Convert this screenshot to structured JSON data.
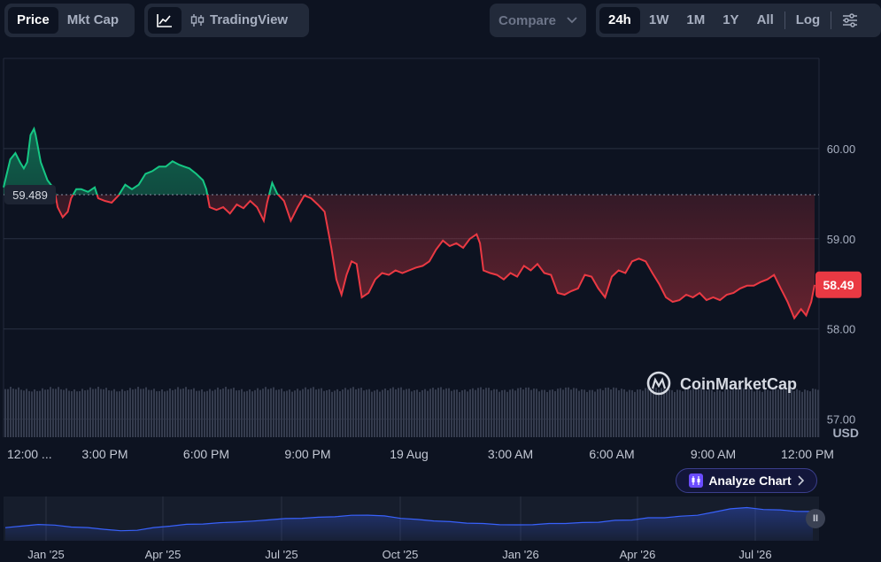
{
  "toolbar": {
    "type_tabs": [
      {
        "label": "Price",
        "active": true
      },
      {
        "label": "Mkt Cap",
        "active": false
      }
    ],
    "tradingview_label": "TradingView",
    "compare_label": "Compare",
    "ranges": [
      {
        "label": "24h",
        "active": true
      },
      {
        "label": "1W",
        "active": false
      },
      {
        "label": "1M",
        "active": false
      },
      {
        "label": "1Y",
        "active": false
      },
      {
        "label": "All",
        "active": false
      }
    ],
    "log_label": "Log"
  },
  "watermark": "CoinMarketCap",
  "analyze_label": "Analyze Chart",
  "colors": {
    "up": "#16c784",
    "down": "#ea3943",
    "volume": "#353c4e",
    "navigator": "#3861fb"
  },
  "chart_data": [
    {
      "type": "line",
      "currency": "USD",
      "baseline_value": 59.489,
      "baseline_label": "59.489",
      "current_value": 58.49,
      "current_label": "58.49",
      "ylim": [
        56.8,
        61.0
      ],
      "y_ticks": [
        {
          "value": 60,
          "label": "60.00"
        },
        {
          "value": 59,
          "label": "59.00"
        },
        {
          "value": 58,
          "label": "58.00"
        },
        {
          "value": 57,
          "label": "57.00"
        }
      ],
      "x_range_hours": [
        0,
        24
      ],
      "x_ticks": [
        {
          "hour": 0.8,
          "label": "12:00 ..."
        },
        {
          "hour": 3,
          "label": "3:00 PM"
        },
        {
          "hour": 6,
          "label": "6:00 PM"
        },
        {
          "hour": 9,
          "label": "9:00 PM"
        },
        {
          "hour": 12,
          "label": "19 Aug"
        },
        {
          "hour": 15,
          "label": "3:00 AM"
        },
        {
          "hour": 18,
          "label": "6:00 AM"
        },
        {
          "hour": 21,
          "label": "9:00 AM"
        },
        {
          "hour": 24,
          "label": "12:00 PM"
        }
      ],
      "points": [
        [
          0.0,
          59.57
        ],
        [
          0.2,
          59.88
        ],
        [
          0.35,
          59.95
        ],
        [
          0.5,
          59.84
        ],
        [
          0.6,
          59.78
        ],
        [
          0.7,
          59.85
        ],
        [
          0.8,
          60.15
        ],
        [
          0.9,
          60.22
        ],
        [
          0.95,
          60.15
        ],
        [
          1.1,
          59.85
        ],
        [
          1.3,
          59.65
        ],
        [
          1.5,
          59.55
        ],
        [
          1.6,
          59.35
        ],
        [
          1.75,
          59.24
        ],
        [
          1.9,
          59.3
        ],
        [
          2.0,
          59.45
        ],
        [
          2.15,
          59.55
        ],
        [
          2.3,
          59.55
        ],
        [
          2.5,
          59.52
        ],
        [
          2.7,
          59.57
        ],
        [
          2.8,
          59.45
        ],
        [
          3.0,
          59.42
        ],
        [
          3.2,
          59.4
        ],
        [
          3.4,
          59.48
        ],
        [
          3.6,
          59.6
        ],
        [
          3.8,
          59.55
        ],
        [
          4.0,
          59.6
        ],
        [
          4.2,
          59.72
        ],
        [
          4.4,
          59.75
        ],
        [
          4.6,
          59.8
        ],
        [
          4.8,
          59.8
        ],
        [
          5.0,
          59.86
        ],
        [
          5.2,
          59.82
        ],
        [
          5.35,
          59.8
        ],
        [
          5.5,
          59.78
        ],
        [
          5.7,
          59.72
        ],
        [
          5.9,
          59.65
        ],
        [
          6.0,
          59.55
        ],
        [
          6.1,
          59.35
        ],
        [
          6.3,
          59.32
        ],
        [
          6.5,
          59.35
        ],
        [
          6.7,
          59.28
        ],
        [
          6.9,
          59.38
        ],
        [
          7.1,
          59.34
        ],
        [
          7.3,
          59.42
        ],
        [
          7.5,
          59.35
        ],
        [
          7.7,
          59.2
        ],
        [
          7.8,
          59.4
        ],
        [
          7.95,
          59.62
        ],
        [
          8.1,
          59.5
        ],
        [
          8.3,
          59.42
        ],
        [
          8.5,
          59.2
        ],
        [
          8.7,
          59.35
        ],
        [
          8.9,
          59.48
        ],
        [
          9.1,
          59.45
        ],
        [
          9.3,
          59.38
        ],
        [
          9.5,
          59.3
        ],
        [
          9.7,
          58.9
        ],
        [
          9.85,
          58.55
        ],
        [
          10.0,
          58.38
        ],
        [
          10.15,
          58.6
        ],
        [
          10.3,
          58.75
        ],
        [
          10.45,
          58.72
        ],
        [
          10.6,
          58.35
        ],
        [
          10.8,
          58.4
        ],
        [
          11.0,
          58.55
        ],
        [
          11.2,
          58.62
        ],
        [
          11.4,
          58.6
        ],
        [
          11.6,
          58.65
        ],
        [
          11.8,
          58.62
        ],
        [
          12.0,
          58.65
        ],
        [
          12.2,
          58.68
        ],
        [
          12.4,
          58.7
        ],
        [
          12.6,
          58.75
        ],
        [
          12.8,
          58.88
        ],
        [
          13.0,
          58.98
        ],
        [
          13.2,
          58.92
        ],
        [
          13.4,
          58.95
        ],
        [
          13.6,
          58.9
        ],
        [
          13.8,
          59.0
        ],
        [
          14.0,
          59.05
        ],
        [
          14.1,
          58.95
        ],
        [
          14.2,
          58.65
        ],
        [
          14.4,
          58.62
        ],
        [
          14.6,
          58.6
        ],
        [
          14.8,
          58.55
        ],
        [
          15.0,
          58.62
        ],
        [
          15.2,
          58.58
        ],
        [
          15.4,
          58.7
        ],
        [
          15.6,
          58.65
        ],
        [
          15.8,
          58.72
        ],
        [
          16.0,
          58.62
        ],
        [
          16.2,
          58.6
        ],
        [
          16.4,
          58.4
        ],
        [
          16.6,
          58.38
        ],
        [
          16.8,
          58.42
        ],
        [
          17.0,
          58.45
        ],
        [
          17.2,
          58.6
        ],
        [
          17.4,
          58.58
        ],
        [
          17.6,
          58.45
        ],
        [
          17.8,
          58.35
        ],
        [
          18.0,
          58.58
        ],
        [
          18.2,
          58.65
        ],
        [
          18.4,
          58.62
        ],
        [
          18.6,
          58.75
        ],
        [
          18.8,
          58.78
        ],
        [
          19.0,
          58.75
        ],
        [
          19.2,
          58.62
        ],
        [
          19.4,
          58.5
        ],
        [
          19.6,
          58.35
        ],
        [
          19.8,
          58.3
        ],
        [
          20.0,
          58.32
        ],
        [
          20.2,
          58.38
        ],
        [
          20.4,
          58.35
        ],
        [
          20.6,
          58.4
        ],
        [
          20.8,
          58.32
        ],
        [
          21.0,
          58.35
        ],
        [
          21.2,
          58.32
        ],
        [
          21.4,
          58.38
        ],
        [
          21.6,
          58.4
        ],
        [
          21.8,
          58.45
        ],
        [
          22.0,
          58.48
        ],
        [
          22.2,
          58.48
        ],
        [
          22.4,
          58.52
        ],
        [
          22.6,
          58.55
        ],
        [
          22.8,
          58.6
        ],
        [
          23.0,
          58.45
        ],
        [
          23.2,
          58.3
        ],
        [
          23.4,
          58.12
        ],
        [
          23.6,
          58.22
        ],
        [
          23.75,
          58.15
        ],
        [
          23.9,
          58.3
        ],
        [
          24.0,
          58.49
        ]
      ]
    },
    {
      "type": "area",
      "role": "navigator",
      "x_ticks": [
        "Jan '25",
        "Apr '25",
        "Jul '25",
        "Oct '25",
        "Jan '26",
        "Apr '26",
        "Jul '26"
      ],
      "values": [
        0.3,
        0.35,
        0.4,
        0.38,
        0.32,
        0.3,
        0.25,
        0.2,
        0.22,
        0.3,
        0.35,
        0.4,
        0.42,
        0.45,
        0.48,
        0.5,
        0.55,
        0.58,
        0.6,
        0.62,
        0.65,
        0.68,
        0.7,
        0.66,
        0.6,
        0.55,
        0.52,
        0.48,
        0.45,
        0.42,
        0.4,
        0.38,
        0.4,
        0.42,
        0.44,
        0.45,
        0.48,
        0.52,
        0.55,
        0.6,
        0.62,
        0.65,
        0.7,
        0.78,
        0.9,
        0.92,
        0.88,
        0.85,
        0.82,
        0.8
      ]
    }
  ]
}
